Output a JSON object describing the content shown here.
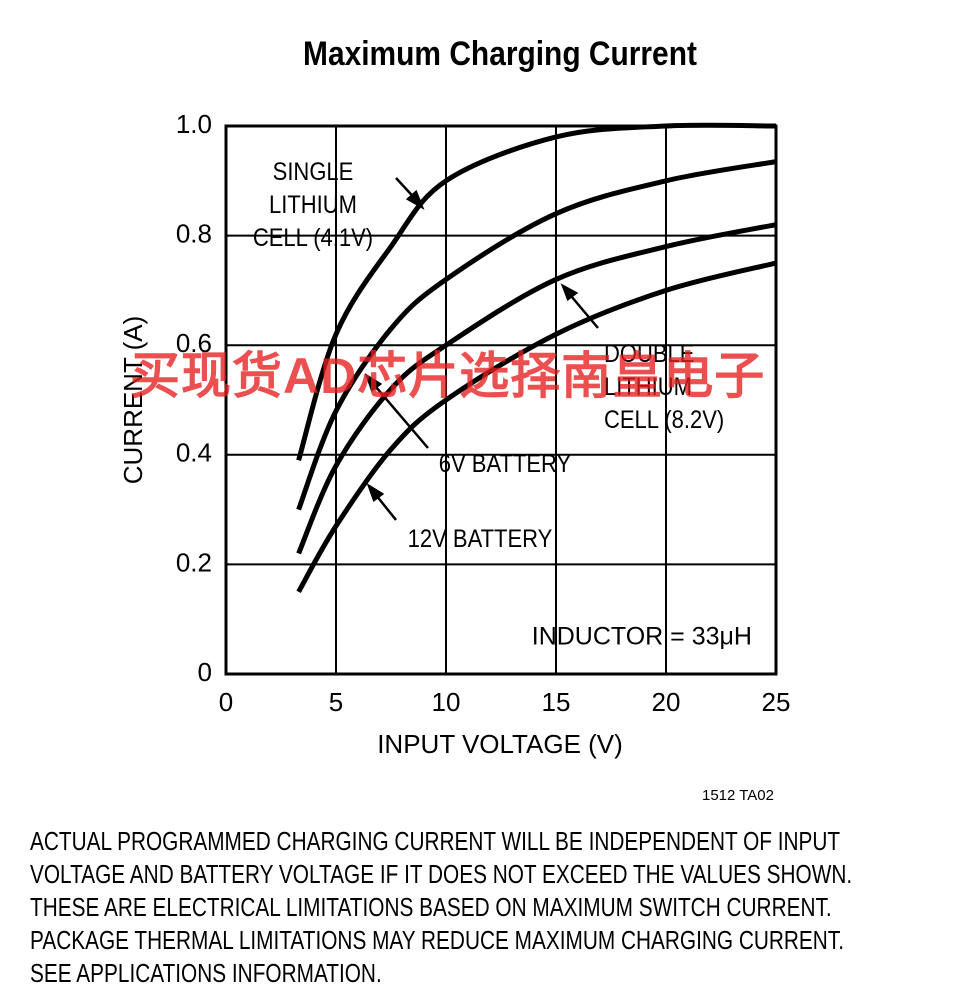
{
  "chart_data": {
    "type": "line",
    "title": "Maximum Charging Current",
    "x_label": "INPUT VOLTAGE (V)",
    "y_label": "CURRENT (A)",
    "x": [
      3.3,
      5,
      7.5,
      10,
      15,
      20,
      25
    ],
    "series": [
      {
        "name": "SINGLE LITHIUM CELL (4.1V)",
        "color": "#000000",
        "values": [
          0.39,
          0.62,
          0.78,
          0.9,
          0.98,
          1.0,
          1.0
        ]
      },
      {
        "name": "6V BATTERY",
        "color": "#000000",
        "values": [
          0.3,
          0.48,
          0.63,
          0.72,
          0.84,
          0.9,
          0.935
        ]
      },
      {
        "name": "DOUBLE LITHIUM CELL (8.2V)",
        "color": "#000000",
        "values": [
          0.22,
          0.38,
          0.52,
          0.6,
          0.72,
          0.78,
          0.82
        ]
      },
      {
        "name": "12V BATTERY",
        "color": "#000000",
        "values": [
          0.15,
          0.27,
          0.41,
          0.5,
          0.62,
          0.7,
          0.75
        ]
      }
    ],
    "xlim": [
      0,
      25
    ],
    "xticks": [
      0,
      5,
      10,
      15,
      20,
      25
    ],
    "ylim": [
      0,
      1
    ],
    "yticks": [
      0,
      0.2,
      0.4,
      0.6,
      0.8,
      {
        "value": 1,
        "label": "1.0"
      }
    ],
    "grid": true,
    "annotation": "INDUCTOR = 33μH",
    "figure_code": "1512 TA02"
  },
  "note_lines": [
    "ACTUAL PROGRAMMED CHARGING CURRENT WILL BE INDEPENDENT OF INPUT",
    "VOLTAGE AND BATTERY VOLTAGE IF IT DOES NOT EXCEED THE VALUES SHOWN.",
    "THESE ARE ELECTRICAL LIMITATIONS BASED ON MAXIMUM SWITCH CURRENT.",
    "PACKAGE THERMAL LIMITATIONS MAY REDUCE MAXIMUM CHARGING CURRENT.",
    "SEE APPLICATIONS INFORMATION."
  ],
  "watermark": "买现货AD芯片选择南皇电子"
}
